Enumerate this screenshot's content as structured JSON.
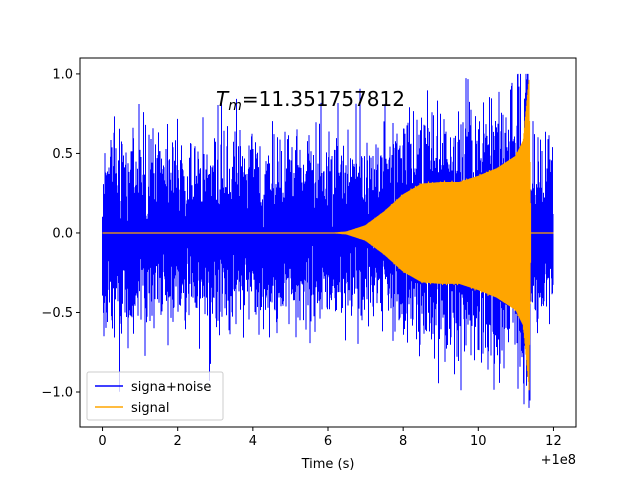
{
  "chart_data": {
    "type": "line",
    "title": "",
    "xlabel": "Time (s)",
    "ylabel": "",
    "x_offset_label": "+1e8",
    "annotation": {
      "symbol": "T",
      "subscript": "m",
      "text": "=11.351757812"
    },
    "xlim": [
      -0.6,
      12.6
    ],
    "ylim": [
      -1.22,
      1.1
    ],
    "xticks": [
      0,
      2,
      4,
      6,
      8,
      10,
      12
    ],
    "xtick_labels": [
      "0",
      "2",
      "4",
      "6",
      "8",
      "10",
      "12"
    ],
    "yticks": [
      -1.0,
      -0.5,
      0.0,
      0.5,
      1.0
    ],
    "ytick_labels": [
      "−1.0",
      "−0.5",
      "0.0",
      "0.5",
      "1.0"
    ],
    "grid": false,
    "legend_position": "lower-left",
    "series": [
      {
        "name": "signa+noise",
        "color": "#0000ff",
        "description_values": {
          "x_range": [
            0,
            12
          ],
          "noise_envelope_approx": 0.45,
          "max": 1.0,
          "min": -1.1
        }
      },
      {
        "name": "signal",
        "color": "#ffa500",
        "envelope": {
          "x": [
            0,
            6.0,
            6.5,
            7.0,
            7.5,
            8.0,
            8.5,
            9.0,
            9.5,
            10.0,
            10.5,
            11.0,
            11.2,
            11.35,
            11.4,
            12.0
          ],
          "amplitude": [
            0,
            0,
            0.01,
            0.05,
            0.14,
            0.25,
            0.32,
            0.33,
            0.33,
            0.37,
            0.42,
            0.5,
            0.6,
            1.0,
            0,
            0
          ]
        }
      }
    ]
  }
}
